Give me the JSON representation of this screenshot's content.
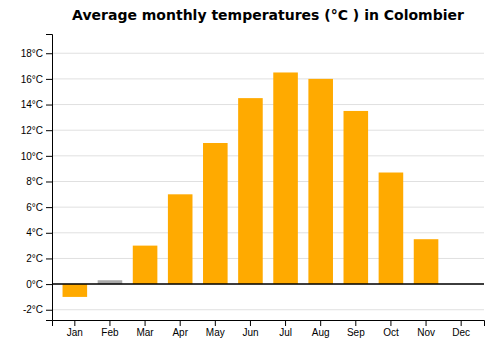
{
  "chart_data": {
    "type": "bar",
    "title": "Average monthly temperatures (°C ) in Colombier",
    "categories": [
      "Jan",
      "Feb",
      "Mar",
      "Apr",
      "May",
      "Jun",
      "Jul",
      "Aug",
      "Sep",
      "Oct",
      "Nov",
      "Dec"
    ],
    "values": [
      -1.0,
      0.3,
      3.0,
      7.0,
      11.0,
      14.5,
      16.5,
      16.0,
      13.5,
      8.7,
      3.5,
      0.0
    ],
    "colors": [
      "#FFAA00",
      "#AAAAAA",
      "#FFAA00",
      "#FFAA00",
      "#FFAA00",
      "#FFAA00",
      "#FFAA00",
      "#FFAA00",
      "#FFAA00",
      "#FFAA00",
      "#FFAA00",
      "#FFAA00"
    ],
    "ylim": [
      -2.8,
      19.5
    ],
    "yticks": [
      {
        "value": -2,
        "label": "-2°C"
      },
      {
        "value": 0,
        "label": "0°C"
      },
      {
        "value": 2,
        "label": "2°C"
      },
      {
        "value": 4,
        "label": "4°C"
      },
      {
        "value": 6,
        "label": "6°C"
      },
      {
        "value": 8,
        "label": "8°C"
      },
      {
        "value": 10,
        "label": "10°C"
      },
      {
        "value": 12,
        "label": "12°C"
      },
      {
        "value": 14,
        "label": "14°C"
      },
      {
        "value": 16,
        "label": "16°C"
      },
      {
        "value": 18,
        "label": "18°C"
      }
    ],
    "grid": true
  }
}
